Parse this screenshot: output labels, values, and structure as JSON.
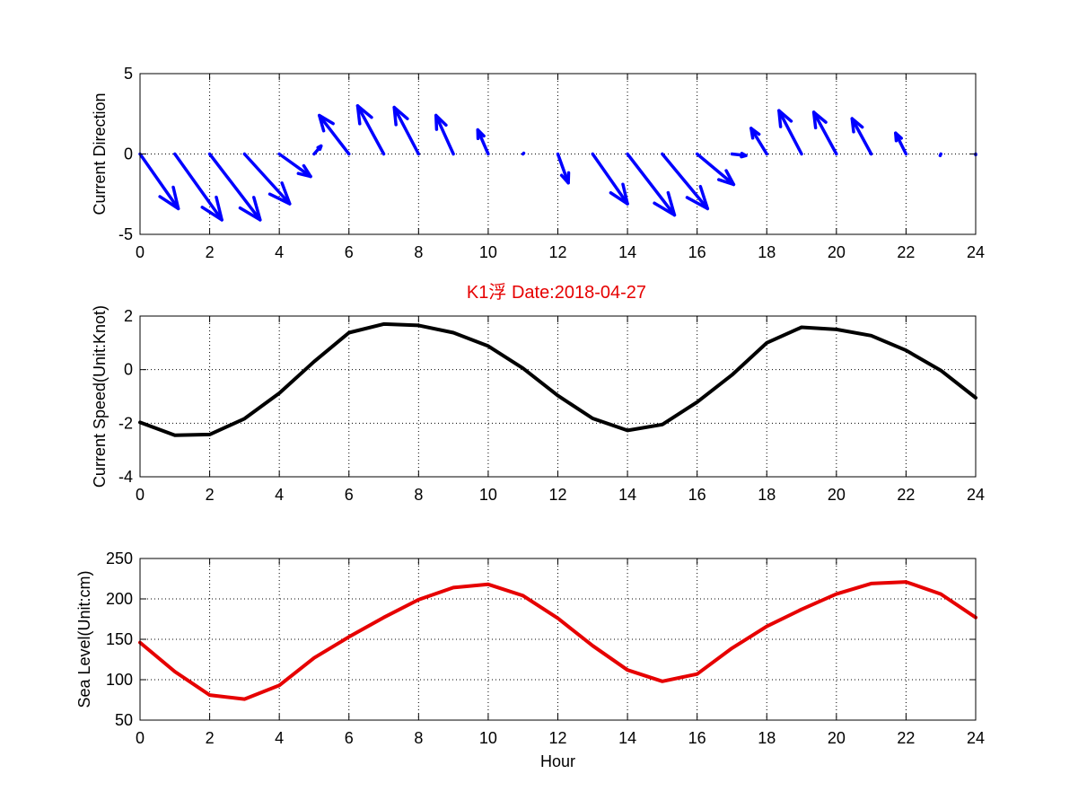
{
  "figure_title": "K1浮    Date:2018-04-27",
  "chart_data": [
    {
      "type": "quiver",
      "ylabel": "Current Direction",
      "xlim": [
        0,
        24
      ],
      "ylim": [
        -5,
        5
      ],
      "xticks": [
        0,
        2,
        4,
        6,
        8,
        10,
        12,
        14,
        16,
        18,
        20,
        22,
        24
      ],
      "yticks": [
        -5,
        0,
        5
      ],
      "grid": true,
      "color": "#0000ff",
      "vectors": [
        {
          "x": 0,
          "u": 1.1,
          "v": -3.4
        },
        {
          "x": 1,
          "u": 1.35,
          "v": -4.1
        },
        {
          "x": 2,
          "u": 1.45,
          "v": -4.1
        },
        {
          "x": 3,
          "u": 1.3,
          "v": -3.1
        },
        {
          "x": 4,
          "u": 0.9,
          "v": -1.4
        },
        {
          "x": 5,
          "u": 0.2,
          "v": 0.5
        },
        {
          "x": 6,
          "u": -0.85,
          "v": 2.4
        },
        {
          "x": 7,
          "u": -0.75,
          "v": 3.0
        },
        {
          "x": 8,
          "u": -0.7,
          "v": 2.9
        },
        {
          "x": 9,
          "u": -0.5,
          "v": 2.4
        },
        {
          "x": 10,
          "u": -0.3,
          "v": 1.5
        },
        {
          "x": 11,
          "u": 0.02,
          "v": 0.05
        },
        {
          "x": 12,
          "u": 0.3,
          "v": -1.8
        },
        {
          "x": 13,
          "u": 1.0,
          "v": -3.1
        },
        {
          "x": 14,
          "u": 1.35,
          "v": -3.8
        },
        {
          "x": 15,
          "u": 1.3,
          "v": -3.4
        },
        {
          "x": 16,
          "u": 1.05,
          "v": -1.9
        },
        {
          "x": 17,
          "u": 0.4,
          "v": -0.1
        },
        {
          "x": 18,
          "u": -0.45,
          "v": 1.6
        },
        {
          "x": 19,
          "u": -0.65,
          "v": 2.7
        },
        {
          "x": 20,
          "u": -0.65,
          "v": 2.6
        },
        {
          "x": 21,
          "u": -0.55,
          "v": 2.2
        },
        {
          "x": 22,
          "u": -0.3,
          "v": 1.3
        },
        {
          "x": 23,
          "u": -0.02,
          "v": -0.1
        },
        {
          "x": 24,
          "u": 0.0,
          "v": -0.05
        }
      ]
    },
    {
      "type": "line",
      "ylabel": "Current Speed(Unit:Knot)",
      "xlim": [
        0,
        24
      ],
      "ylim": [
        -4,
        2
      ],
      "xticks": [
        0,
        2,
        4,
        6,
        8,
        10,
        12,
        14,
        16,
        18,
        20,
        22,
        24
      ],
      "yticks": [
        -4,
        -2,
        0,
        2
      ],
      "grid": true,
      "color": "#000000",
      "x": [
        0,
        1,
        2,
        3,
        4,
        5,
        6,
        7,
        8,
        9,
        10,
        11,
        12,
        13,
        14,
        15,
        16,
        17,
        18,
        19,
        20,
        21,
        22,
        23,
        24
      ],
      "y": [
        -1.97,
        -2.45,
        -2.42,
        -1.83,
        -0.88,
        0.3,
        1.38,
        1.7,
        1.65,
        1.38,
        0.88,
        0.05,
        -0.97,
        -1.82,
        -2.27,
        -2.05,
        -1.21,
        -0.2,
        1.0,
        1.58,
        1.5,
        1.27,
        0.72,
        -0.03,
        -1.05
      ]
    },
    {
      "type": "line",
      "xlabel": "Hour",
      "ylabel": "Sea Level(Unit:cm)",
      "xlim": [
        0,
        24
      ],
      "ylim": [
        50,
        250
      ],
      "xticks": [
        0,
        2,
        4,
        6,
        8,
        10,
        12,
        14,
        16,
        18,
        20,
        22,
        24
      ],
      "yticks": [
        50,
        100,
        150,
        200,
        250
      ],
      "grid": true,
      "color": "#e60000",
      "x": [
        0,
        1,
        2,
        3,
        4,
        5,
        6,
        7,
        8,
        9,
        10,
        11,
        12,
        13,
        14,
        15,
        16,
        17,
        18,
        19,
        20,
        21,
        22,
        23,
        24
      ],
      "y": [
        146,
        110,
        81,
        76,
        93,
        127,
        153,
        177,
        199,
        214,
        218,
        204,
        176,
        142,
        112,
        98,
        107,
        139,
        166,
        187,
        206,
        219,
        221,
        206,
        177
      ]
    }
  ]
}
